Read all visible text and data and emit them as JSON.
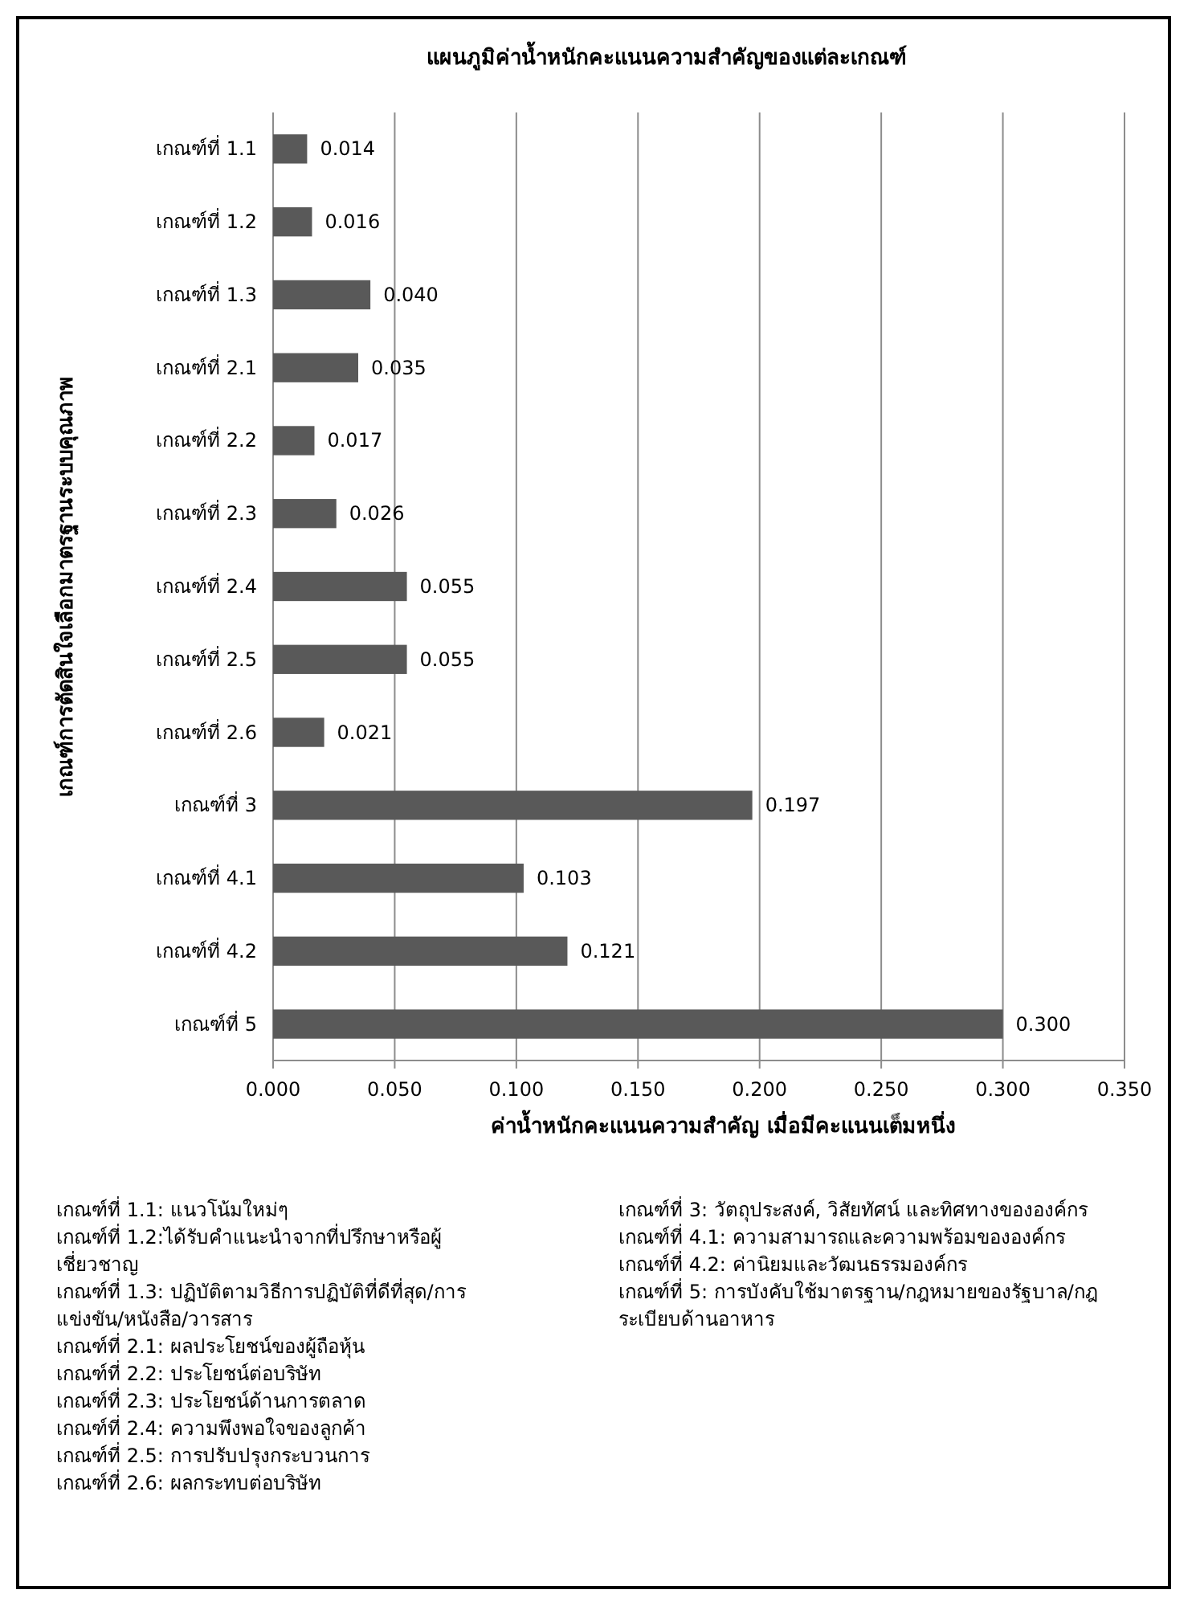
{
  "chart_data": {
    "type": "bar",
    "orientation": "horizontal",
    "title": "แผนภูมิค่าน้ำหนักคะแนนความสำคัญของแต่ละเกณฑ์",
    "xlabel": "ค่าน้ำหนักคะแนนความสำคัญ  เมื่อมีคะแนนเต็มหนึ่ง",
    "ylabel": "เกณฑ์การตัดสินใจเลือกมาตรฐานระบบคุณภาพ",
    "categories": [
      "เกณฑ์ที่ 1.1",
      "เกณฑ์ที่ 1.2",
      "เกณฑ์ที่ 1.3",
      "เกณฑ์ที่ 2.1",
      "เกณฑ์ที่ 2.2",
      "เกณฑ์ที่ 2.3",
      "เกณฑ์ที่ 2.4",
      "เกณฑ์ที่ 2.5",
      "เกณฑ์ที่ 2.6",
      "เกณฑ์ที่ 3",
      "เกณฑ์ที่ 4.1",
      "เกณฑ์ที่ 4.2",
      "เกณฑ์ที่ 5"
    ],
    "values": [
      0.014,
      0.016,
      0.04,
      0.035,
      0.017,
      0.026,
      0.055,
      0.055,
      0.021,
      0.197,
      0.103,
      0.121,
      0.3
    ],
    "value_labels": [
      "0.014",
      "0.016",
      "0.040",
      "0.035",
      "0.017",
      "0.026",
      "0.055",
      "0.055",
      "0.021",
      "0.197",
      "0.103",
      "0.121",
      "0.300"
    ],
    "color": "#595959",
    "xlim": [
      0,
      0.35
    ],
    "xticks": [
      {
        "value": 0,
        "label": "0.000"
      },
      {
        "value": 0.05,
        "label": "0.050"
      },
      {
        "value": 0.1,
        "label": "0.100"
      },
      {
        "value": 0.15,
        "label": "0.150"
      },
      {
        "value": 0.2,
        "label": "0.200"
      },
      {
        "value": 0.25,
        "label": "0.250"
      },
      {
        "value": 0.3,
        "label": "0.300"
      },
      {
        "value": 0.35,
        "label": "0.350"
      }
    ],
    "grid": "x",
    "annotations": [
      "เกณฑ์ที่ 1.1: แนวโน้มใหม่ๆ",
      "เกณฑ์ที่ 1.2:ได้รับคำแนะนำจากที่ปรึกษาหรือผู้เชี่ยวชาญ",
      "เกณฑ์ที่ 1.3: ปฏิบัติตามวิธีการปฏิบัติที่ดีที่สุด/การแข่งขัน/หนังสือ/วารสาร",
      "เกณฑ์ที่ 2.1: ผลประโยชน์ของผู้ถือหุ้น",
      "เกณฑ์ที่ 2.2: ประโยชน์ต่อบริษัท",
      "เกณฑ์ที่ 2.3: ประโยชน์ด้านการตลาด",
      "เกณฑ์ที่ 2.4: ความพึงพอใจของลูกค้า",
      "เกณฑ์ที่ 2.5: การปรับปรุงกระบวนการ",
      "เกณฑ์ที่ 2.6: ผลกระทบต่อบริษัท",
      "เกณฑ์ที่ 3: วัตถุประสงค์, วิสัยทัศน์ และทิศทางขององค์กร",
      "เกณฑ์ที่ 4.1: ความสามารถและความพร้อมขององค์กร",
      "เกณฑ์ที่ 4.2: ค่านิยมและวัฒนธรรมองค์กร",
      "เกณฑ์ที่ 5: การบังคับใช้มาตรฐาน/กฎหมายของรัฐบาล/กฎระเบียบด้านอาหาร"
    ]
  }
}
